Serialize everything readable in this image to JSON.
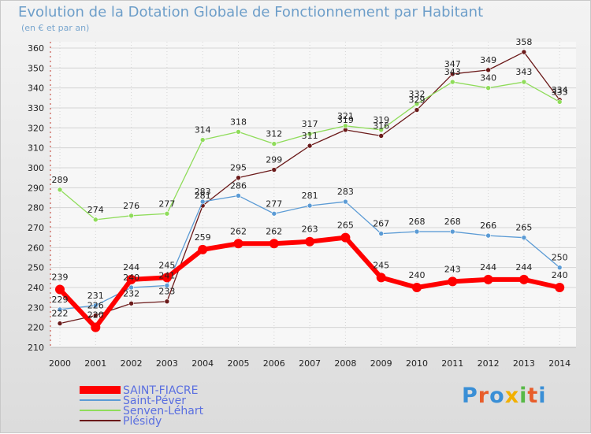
{
  "chart_data": {
    "type": "line",
    "title": "Evolution de la Dotation Globale de Fonctionnement par Habitant",
    "subtitle": "(en € et par an)",
    "xlabel": "",
    "ylabel": "",
    "categories": [
      "2000",
      "2001",
      "2002",
      "2003",
      "2004",
      "2005",
      "2006",
      "2007",
      "2008",
      "2009",
      "2010",
      "2011",
      "2012",
      "2013",
      "2014"
    ],
    "ylim": [
      210,
      360
    ],
    "yticks": [
      210,
      220,
      230,
      240,
      250,
      260,
      270,
      280,
      290,
      300,
      310,
      320,
      330,
      340,
      350,
      360
    ],
    "grid": true,
    "legend_position": "bottom-left",
    "series": [
      {
        "name": "SAINT-FIACRE",
        "color": "#ff0000",
        "values": [
          239,
          220,
          244,
          245,
          259,
          262,
          262,
          263,
          265,
          245,
          240,
          243,
          244,
          244,
          240
        ]
      },
      {
        "name": "Saint-Péver",
        "color": "#5b9bd5",
        "values": [
          229,
          231,
          240,
          241,
          283,
          286,
          277,
          281,
          283,
          267,
          268,
          268,
          266,
          265,
          250
        ]
      },
      {
        "name": "Senven-Léhart",
        "color": "#8fdc5a",
        "values": [
          289,
          274,
          276,
          277,
          314,
          318,
          312,
          317,
          321,
          319,
          332,
          343,
          340,
          343,
          333
        ]
      },
      {
        "name": "Plésidy",
        "color": "#6b1a1a",
        "values": [
          222,
          226,
          232,
          233,
          281,
          295,
          299,
          311,
          319,
          316,
          329,
          347,
          349,
          358,
          334
        ]
      }
    ]
  },
  "logo": {
    "text": "Proxiti"
  }
}
